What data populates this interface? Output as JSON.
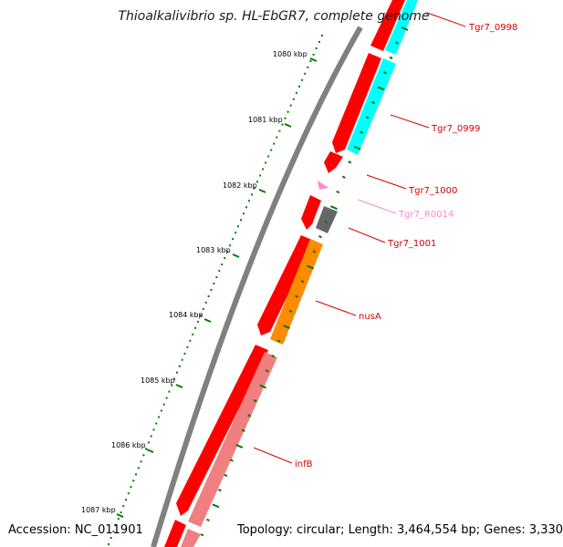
{
  "title": "Thioalkalivibrio sp. HL-EbGR7, complete genome",
  "accession": "Accession: NC_011901",
  "summary": "Topology: circular; Length: 3,464,554 bp; Genes: 3,330",
  "colors": {
    "backbone": "#808080",
    "tick": "#007a00",
    "cds": "#ff0000",
    "label": "#d40000",
    "cyan": "#00ffff",
    "orange": "#ff8c00",
    "gray_gene": "#666666",
    "salmon": "#f08080",
    "rna": "#ff88cc",
    "rna_label": "#ff88cc"
  },
  "ticks": [
    "1080 kbp",
    "1081 kbp",
    "1082 kbp",
    "1083 kbp",
    "1084 kbp",
    "1085 kbp",
    "1086 kbp",
    "1087 kbp"
  ],
  "gene_labels": [
    {
      "name": "Tgr7_0998",
      "color": "#d40000"
    },
    {
      "name": "Tgr7_0999",
      "color": "#d40000"
    },
    {
      "name": "Tgr7_1000",
      "color": "#d40000"
    },
    {
      "name": "Tgr7_R0014",
      "color": "#ff88cc"
    },
    {
      "name": "Tgr7_1001",
      "color": "#d40000"
    },
    {
      "name": "nusA",
      "color": "#d40000"
    },
    {
      "name": "infB",
      "color": "#d40000"
    }
  ]
}
